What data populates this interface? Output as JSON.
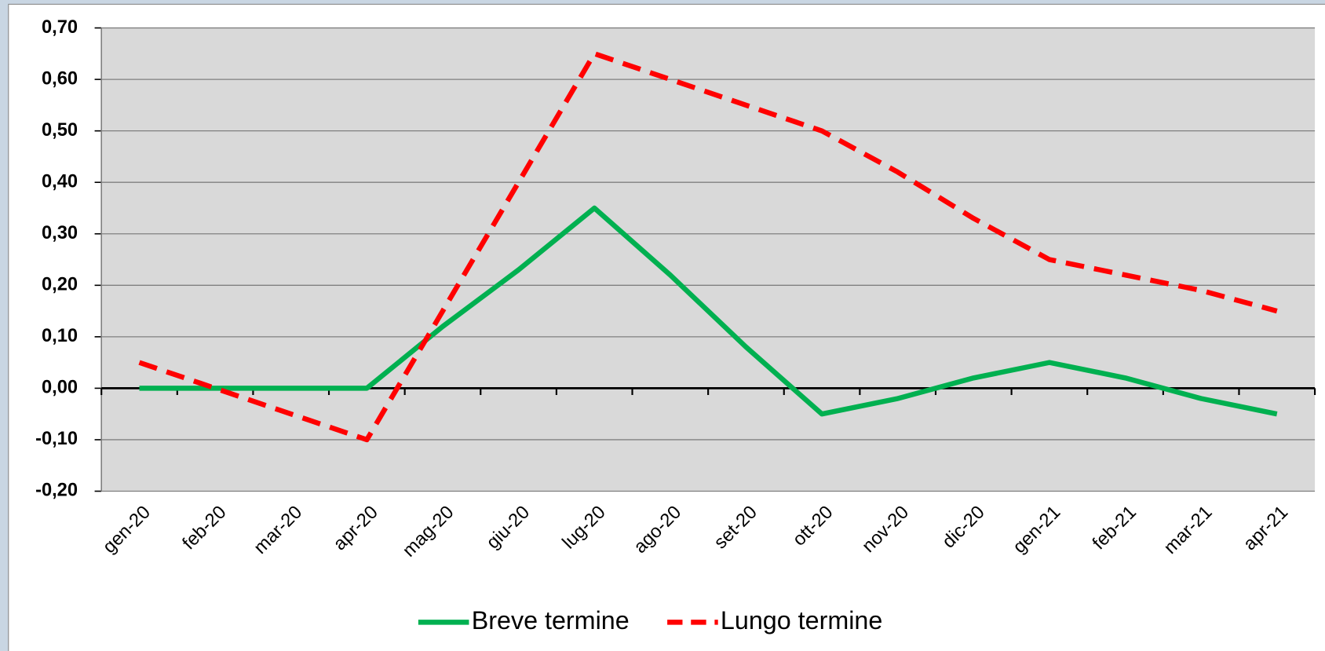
{
  "chart_data": {
    "type": "line",
    "categories": [
      "gen-20",
      "feb-20",
      "mar-20",
      "apr-20",
      "mag-20",
      "giu-20",
      "lug-20",
      "ago-20",
      "set-20",
      "ott-20",
      "nov-20",
      "dic-20",
      "gen-21",
      "feb-21",
      "mar-21",
      "apr-21"
    ],
    "series": [
      {
        "name": "Breve termine",
        "color": "#00b050",
        "dash": false,
        "values": [
          0,
          0,
          0,
          0,
          0.12,
          0.23,
          0.35,
          0.22,
          0.08,
          -0.05,
          -0.02,
          0.02,
          0.05,
          0.02,
          -0.02,
          -0.05
        ]
      },
      {
        "name": "Lungo termine",
        "color": "#ff0000",
        "dash": true,
        "values": [
          0.05,
          0,
          -0.05,
          -0.1,
          0.15,
          0.4,
          0.65,
          0.6,
          0.55,
          0.5,
          0.42,
          0.33,
          0.25,
          0.22,
          0.19,
          0.15
        ]
      }
    ],
    "ylim": [
      -0.2,
      0.7
    ],
    "yticks": [
      {
        "value": -0.2,
        "label": "-0,20"
      },
      {
        "value": -0.1,
        "label": "-0,10"
      },
      {
        "value": 0,
        "label": "0,00"
      },
      {
        "value": 0.1,
        "label": "0,10"
      },
      {
        "value": 0.2,
        "label": "0,20"
      },
      {
        "value": 0.3,
        "label": "0,30"
      },
      {
        "value": 0.4,
        "label": "0,40"
      },
      {
        "value": 0.5,
        "label": "0,50"
      },
      {
        "value": 0.6,
        "label": "0,60"
      },
      {
        "value": 0.7,
        "label": "0,70"
      }
    ],
    "grid": true,
    "legend": "bottom"
  }
}
